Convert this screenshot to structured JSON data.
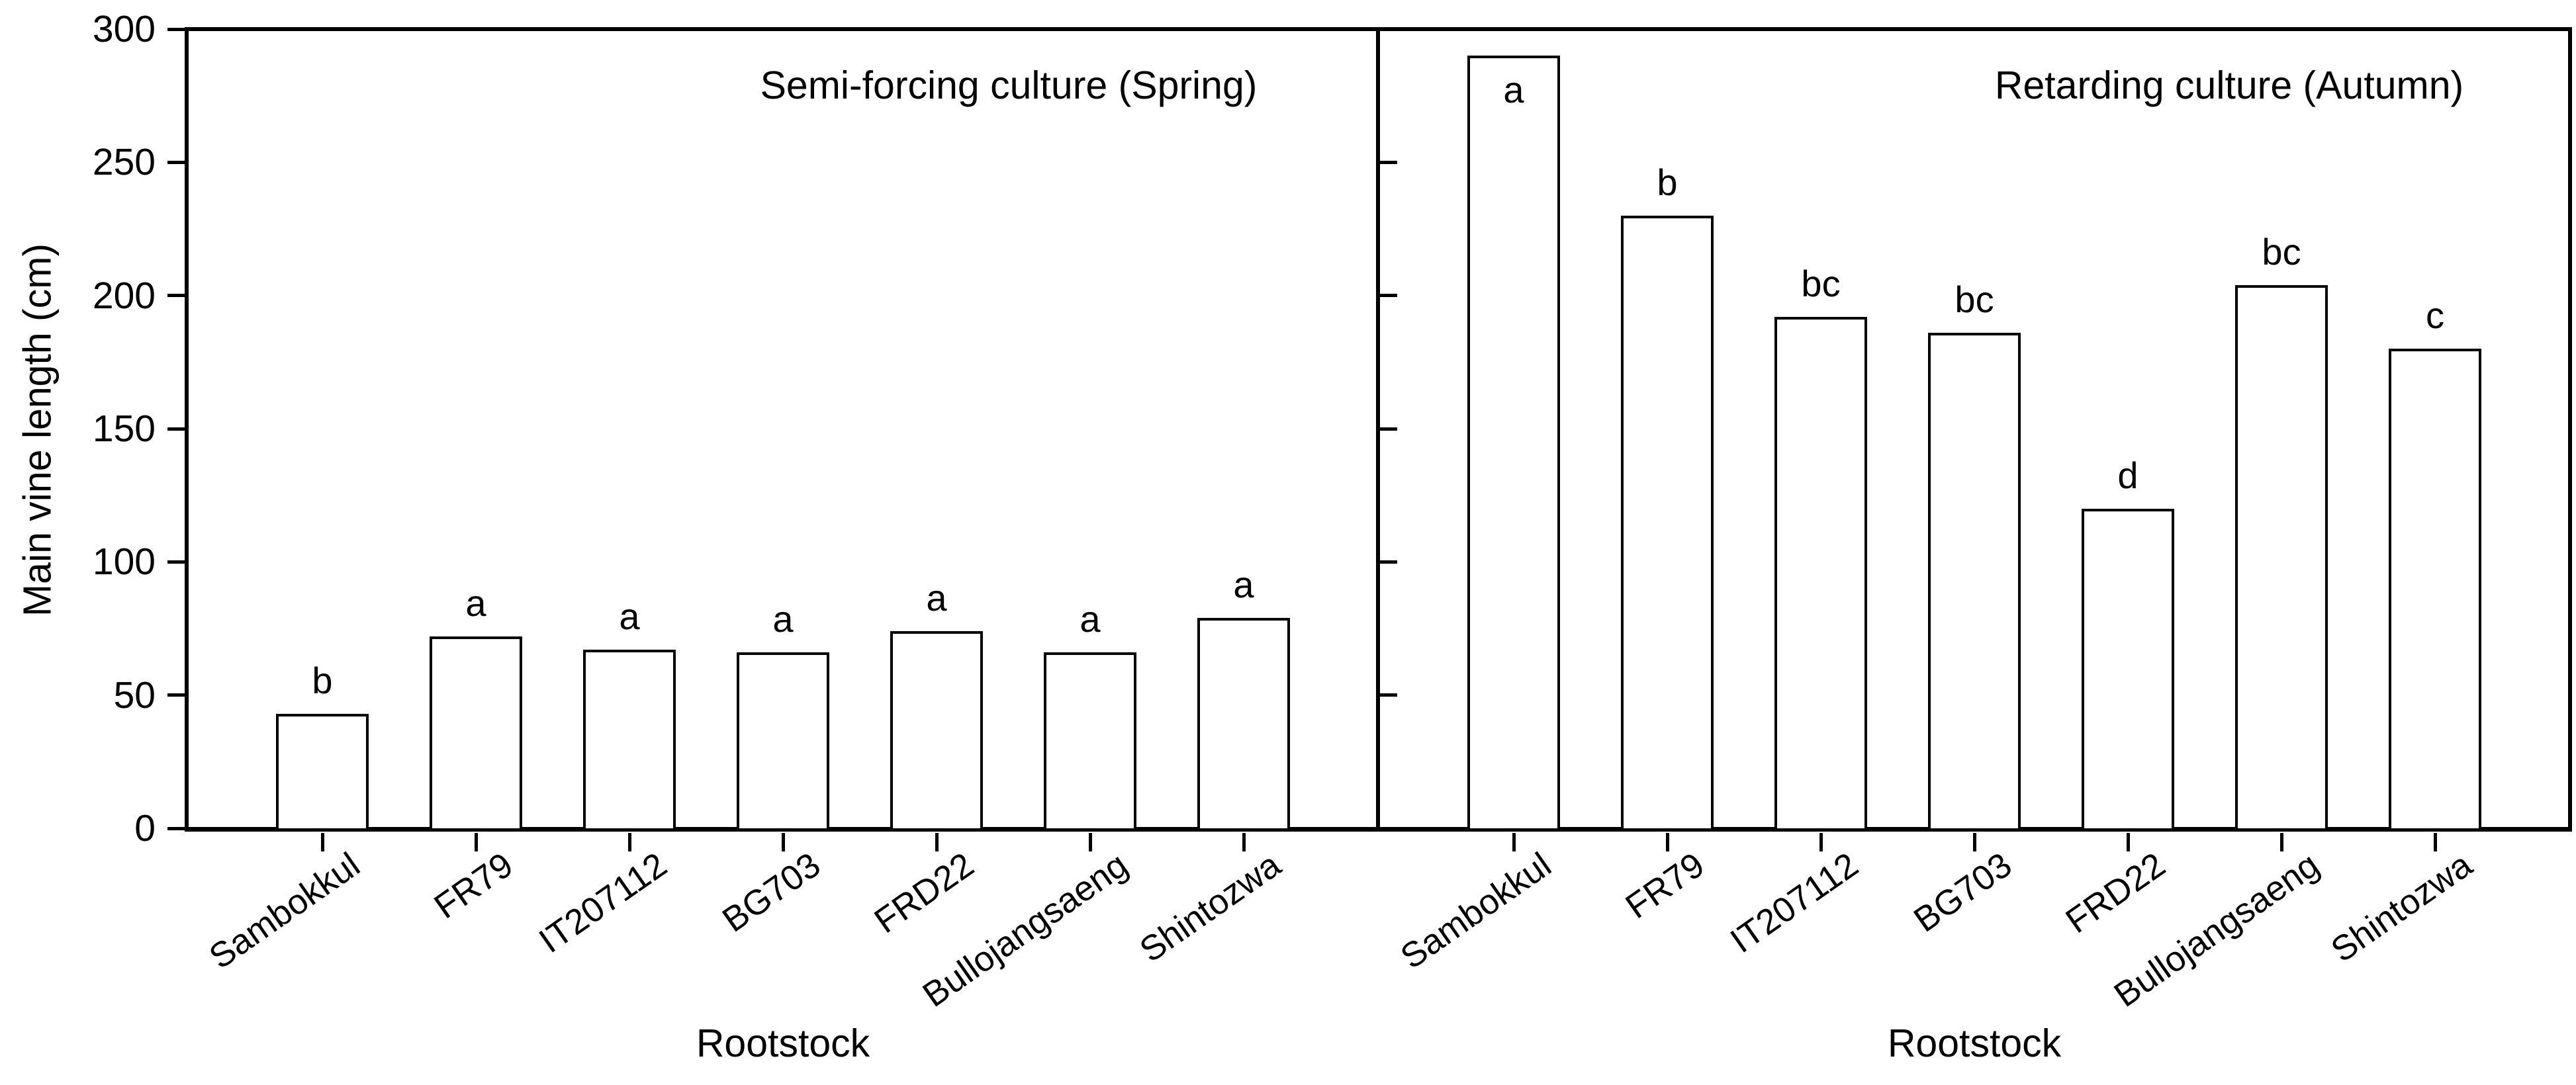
{
  "chart_data": [
    {
      "type": "bar",
      "panel": "left",
      "title": "Semi-forcing culture (Spring)",
      "categories": [
        "Sambokkul",
        "FR79",
        "IT207112",
        "BG703",
        "FRD22",
        "Bullojangsaeng",
        "Shintozwa"
      ],
      "values": [
        43,
        72,
        67,
        66,
        74,
        66,
        79
      ],
      "bar_labels": [
        "b",
        "a",
        "a",
        "a",
        "a",
        "a",
        "a"
      ],
      "xlabel": "Rootstock",
      "ylabel": "Main vine length (cm)",
      "ylim": [
        0,
        300
      ],
      "yticks": [
        0,
        50,
        100,
        150,
        200,
        250,
        300
      ],
      "grid": false,
      "bar_fill": "#ffffff",
      "bar_edge": "#000000",
      "legend": "none"
    },
    {
      "type": "bar",
      "panel": "right",
      "title": "Retarding culture (Autumn)",
      "categories": [
        "Sambokkul",
        "FR79",
        "IT207112",
        "BG703",
        "FRD22",
        "Bullojangsaeng",
        "Shintozwa"
      ],
      "values": [
        290,
        230,
        192,
        186,
        120,
        204,
        180
      ],
      "bar_labels": [
        "a",
        "b",
        "bc",
        "bc",
        "d",
        "bc",
        "c"
      ],
      "xlabel": "Rootstock",
      "ylabel": "Main vine length (cm)",
      "ylim": [
        0,
        300
      ],
      "yticks": [
        0,
        50,
        100,
        150,
        200,
        250,
        300
      ],
      "grid": false,
      "bar_fill": "#ffffff",
      "bar_edge": "#000000",
      "legend": "none"
    }
  ],
  "colors": {
    "foreground": "#000000",
    "background": "#ffffff"
  }
}
